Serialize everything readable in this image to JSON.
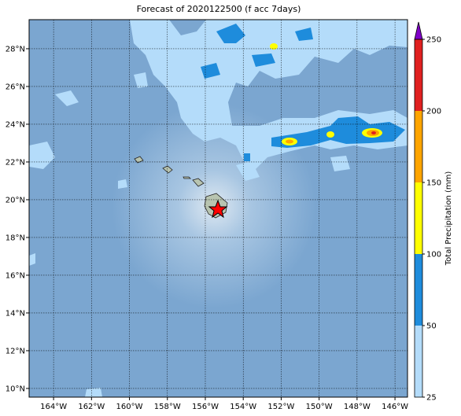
{
  "map": {
    "title": "Forecast of 2020122500 (f acc 7days)",
    "extent": [
      -165.29,
      -145.34,
      9.54,
      29.54
    ],
    "lon_ticks": [
      {
        "value": -164,
        "label": "164°W"
      },
      {
        "value": -162,
        "label": "162°W"
      },
      {
        "value": -160,
        "label": "160°W"
      },
      {
        "value": -158,
        "label": "158°W"
      },
      {
        "value": -156,
        "label": "156°W"
      },
      {
        "value": -154,
        "label": "154°W"
      },
      {
        "value": -152,
        "label": "152°W"
      },
      {
        "value": -150,
        "label": "150°W"
      },
      {
        "value": -148,
        "label": "148°W"
      },
      {
        "value": -146,
        "label": "146°W"
      }
    ],
    "lat_ticks": [
      {
        "value": 10,
        "label": "10°N"
      },
      {
        "value": 12,
        "label": "12°N"
      },
      {
        "value": 14,
        "label": "14°N"
      },
      {
        "value": 16,
        "label": "16°N"
      },
      {
        "value": 18,
        "label": "18°N"
      },
      {
        "value": 20,
        "label": "20°N"
      },
      {
        "value": 22,
        "label": "22°N"
      },
      {
        "value": 24,
        "label": "24°N"
      },
      {
        "value": 26,
        "label": "26°N"
      },
      {
        "value": 28,
        "label": "28°N"
      }
    ],
    "colorbar": {
      "label": "Total Precipitation (mm)",
      "ticks": [
        25,
        50,
        100,
        150,
        200,
        250
      ],
      "colors": [
        "#b4dcfa",
        "#1e8cdc",
        "#ffff00",
        "#ffa500",
        "#e02020"
      ],
      "over_color": "#8000c8"
    }
  }
}
